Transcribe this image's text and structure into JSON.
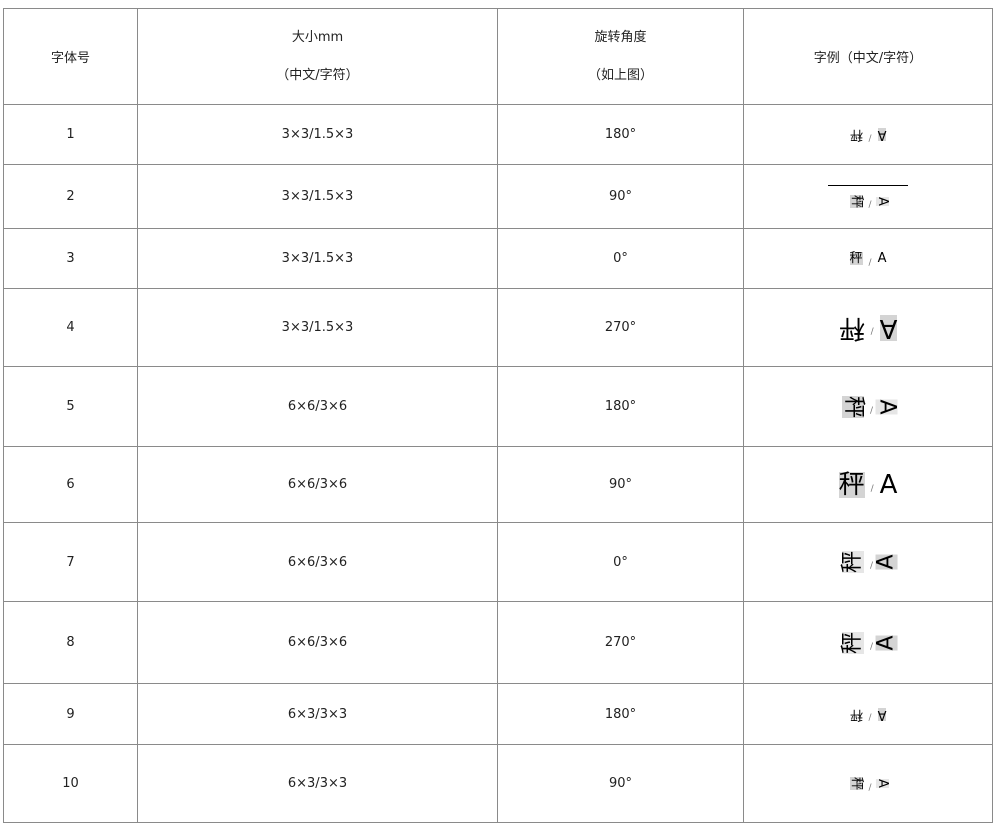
{
  "headers": {
    "font_no": "字体号",
    "size_line1": "大小mm",
    "size_line2": "（中文/字符）",
    "angle_line1": "旋转角度",
    "angle_line2": "（如上图）",
    "example": "字例（中文/字符）"
  },
  "example_chars": {
    "cn": "秤",
    "latin": "A",
    "sep": "/"
  },
  "rows": [
    {
      "no": "1",
      "size": "3×3/1.5×3",
      "angle": "180°"
    },
    {
      "no": "2",
      "size": "3×3/1.5×3",
      "angle": "90°"
    },
    {
      "no": "3",
      "size": "3×3/1.5×3",
      "angle": "0°"
    },
    {
      "no": "4",
      "size": "3×3/1.5×3",
      "angle": "270°"
    },
    {
      "no": "5",
      "size": "6×6/3×6",
      "angle": "180°"
    },
    {
      "no": "6",
      "size": "6×6/3×6",
      "angle": "90°"
    },
    {
      "no": "7",
      "size": "6×6/3×6",
      "angle": "0°"
    },
    {
      "no": "8",
      "size": "6×6/3×6",
      "angle": "270°"
    },
    {
      "no": "9",
      "size": "6×3/3×3",
      "angle": "180°"
    },
    {
      "no": "10",
      "size": "6×3/3×3",
      "angle": "90°"
    }
  ]
}
